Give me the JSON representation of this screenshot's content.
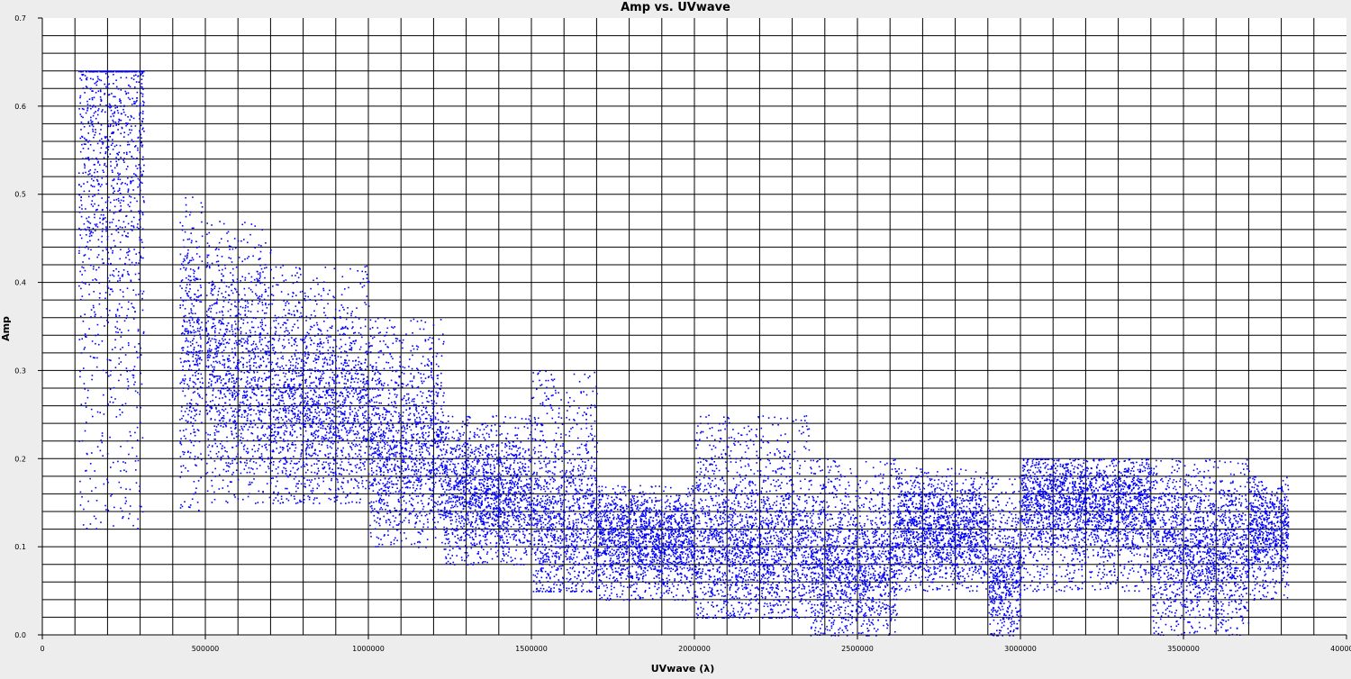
{
  "chart_data": {
    "type": "scatter",
    "title": "Amp vs. UVwave",
    "xlabel": "UVwave (λ)",
    "ylabel": "Amp",
    "xlim": [
      0,
      4000000
    ],
    "ylim": [
      0,
      0.7
    ],
    "x_ticks": [
      0,
      500000,
      1000000,
      1500000,
      2000000,
      2500000,
      3000000,
      3500000,
      4000000
    ],
    "x_tick_labels": [
      "0",
      "500000",
      "1000000",
      "1500000",
      "2000000",
      "2500000",
      "3000000",
      "3500000",
      "4000000"
    ],
    "y_ticks": [
      0,
      0.1,
      0.2,
      0.3,
      0.4,
      0.5,
      0.6,
      0.7
    ],
    "y_tick_labels": [
      "0.0",
      "0.1",
      "0.2",
      "0.3",
      "0.4",
      "0.5",
      "0.6",
      "0.7"
    ],
    "grid": true,
    "colors": {
      "points": "#0000ff",
      "grid": "#000000",
      "background": "#ffffff",
      "frame": "#ededed"
    },
    "series": [
      {
        "color": "#0000ff",
        "clusters": [
          {
            "x": [
              110000,
              310000
            ],
            "y_range": [
              0.12,
              0.64
            ],
            "center": 0.55
          },
          {
            "x": [
              420000,
              490000
            ],
            "y_range": [
              0.14,
              0.5
            ],
            "center": 0.33
          },
          {
            "x": [
              500000,
              700000
            ],
            "y_range": [
              0.15,
              0.47
            ],
            "center": 0.3
          },
          {
            "x": [
              700000,
              1000000
            ],
            "y_range": [
              0.15,
              0.42
            ],
            "center": 0.26
          },
          {
            "x": [
              1000000,
              1230000
            ],
            "y_range": [
              0.1,
              0.36
            ],
            "center": 0.21
          },
          {
            "x": [
              1230000,
              1500000
            ],
            "y_range": [
              0.08,
              0.25
            ],
            "center": 0.16
          },
          {
            "x": [
              1500000,
              1700000
            ],
            "y_range": [
              0.05,
              0.3
            ],
            "center": 0.13
          },
          {
            "x": [
              1700000,
              2000000
            ],
            "y_range": [
              0.04,
              0.17
            ],
            "center": 0.11
          },
          {
            "x": [
              2000000,
              2350000
            ],
            "y_range": [
              0.02,
              0.25
            ],
            "center": 0.1
          },
          {
            "x": [
              2350000,
              2620000
            ],
            "y_range": [
              0.0,
              0.2
            ],
            "center": 0.08
          },
          {
            "x": [
              2620000,
              2900000
            ],
            "y_range": [
              0.05,
              0.19
            ],
            "center": 0.12
          },
          {
            "x": [
              2900000,
              3000000
            ],
            "y_range": [
              0.0,
              0.18
            ],
            "center": 0.07
          },
          {
            "x": [
              3000000,
              3400000
            ],
            "y_range": [
              0.05,
              0.2
            ],
            "center": 0.15
          },
          {
            "x": [
              3400000,
              3700000
            ],
            "y_range": [
              0.0,
              0.2
            ],
            "center": 0.1
          },
          {
            "x": [
              3700000,
              3820000
            ],
            "y_range": [
              0.04,
              0.18
            ],
            "center": 0.12
          }
        ]
      }
    ]
  }
}
